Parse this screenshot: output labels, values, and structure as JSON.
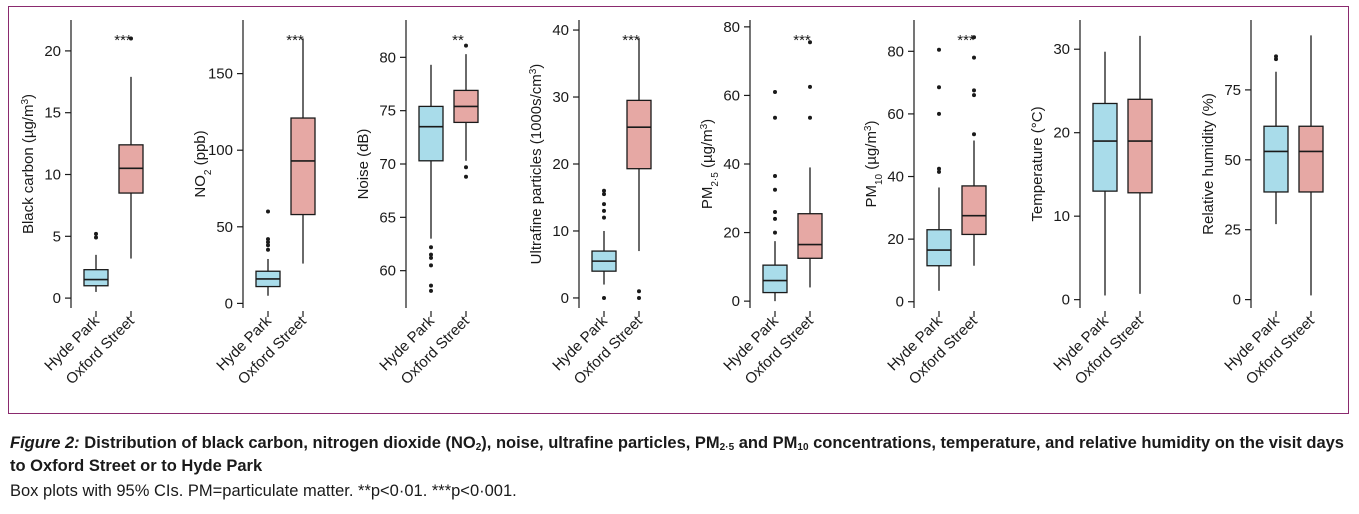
{
  "figure": {
    "caption_label": "Figure 2:",
    "caption_parts": [
      "Distribution of black carbon, nitrogen dioxide (NO",
      "2",
      "), noise, ultrafine particles, PM",
      "2·5",
      " and PM",
      "10",
      " concentrations, temperature, and relative humidity on the visit days to Oxford Street or to Hyde Park"
    ],
    "note": "Box plots with 95% CIs. PM=particulate matter. **p<0·01. ***p<0·001.",
    "colors": {
      "hyde_park": "#a9dcea",
      "oxford_street": "#e6a8a4",
      "frame": "#8a2a6e",
      "ink": "#1a1a1a"
    }
  },
  "chart_data": [
    {
      "type": "box",
      "ylabel": "Black carbon (µg/m³)",
      "ylabel_parts": [
        "Black carbon (µg/m",
        "3",
        ")"
      ],
      "ylim": [
        -0.8,
        22.5
      ],
      "ticks": [
        0,
        5,
        10,
        15,
        20
      ],
      "tick_labels": [
        "0",
        "5",
        "10",
        "15",
        "20"
      ],
      "significance": "***",
      "categories": [
        "Hyde Park",
        "Oxford Street"
      ],
      "series": [
        {
          "name": "Hyde Park",
          "whisker_low": 0.5,
          "q1": 1.0,
          "median": 1.5,
          "q3": 2.3,
          "whisker_high": 3.5,
          "outliers": [
            4.9,
            5.2
          ]
        },
        {
          "name": "Oxford Street",
          "whisker_low": 3.2,
          "q1": 8.5,
          "median": 10.5,
          "q3": 12.4,
          "whisker_high": 17.9,
          "outliers": [
            21.0
          ]
        }
      ]
    },
    {
      "type": "box",
      "ylabel": "NO₂ (ppb)",
      "ylabel_parts": [
        "NO",
        "2",
        " (ppb)"
      ],
      "ylim": [
        -3,
        185
      ],
      "ticks": [
        0,
        50,
        100,
        150
      ],
      "tick_labels": [
        "0",
        "50",
        "100",
        "150"
      ],
      "significance": "***",
      "categories": [
        "Hyde Park",
        "Oxford Street"
      ],
      "series": [
        {
          "name": "Hyde Park",
          "whisker_low": 5,
          "q1": 11,
          "median": 16,
          "q3": 21,
          "whisker_high": 29,
          "outliers": [
            35,
            38,
            40,
            42,
            60
          ]
        },
        {
          "name": "Oxford Street",
          "whisker_low": 26,
          "q1": 58,
          "median": 93,
          "q3": 121,
          "whisker_high": 173,
          "outliers": []
        }
      ]
    },
    {
      "type": "box",
      "ylabel": "Noise (dB)",
      "ylabel_parts": [
        "Noise (dB)",
        "",
        ""
      ],
      "ylim": [
        56.5,
        83.5
      ],
      "ticks": [
        60,
        65,
        70,
        75,
        80
      ],
      "tick_labels": [
        "60",
        "65",
        "70",
        "75",
        "80"
      ],
      "significance": "**",
      "categories": [
        "Hyde Park",
        "Oxford Street"
      ],
      "series": [
        {
          "name": "Hyde Park",
          "whisker_low": 63,
          "q1": 70.3,
          "median": 73.5,
          "q3": 75.4,
          "whisker_high": 79.3,
          "outliers": [
            62.2,
            61.5,
            61.2,
            60.5,
            58.6,
            58.1
          ]
        },
        {
          "name": "Oxford Street",
          "whisker_low": 70.3,
          "q1": 73.9,
          "median": 75.4,
          "q3": 76.9,
          "whisker_high": 80.3,
          "outliers": [
            69.7,
            68.8,
            81.1
          ]
        }
      ]
    },
    {
      "type": "box",
      "ylabel": "Ultrafine particles (1000s/cm³)",
      "ylabel_parts": [
        "Ultrafine particles (1000s/cm",
        "3",
        ")"
      ],
      "ylim": [
        -1.5,
        41.5
      ],
      "ticks": [
        0,
        10,
        20,
        30,
        40
      ],
      "tick_labels": [
        "0",
        "10",
        "20",
        "30",
        "40"
      ],
      "significance": "***",
      "categories": [
        "Hyde Park",
        "Oxford Street"
      ],
      "series": [
        {
          "name": "Hyde Park",
          "whisker_low": 2,
          "q1": 4,
          "median": 5.5,
          "q3": 7,
          "whisker_high": 10,
          "outliers": [
            0,
            12,
            13,
            14,
            15.5,
            16
          ]
        },
        {
          "name": "Oxford Street",
          "whisker_low": 7,
          "q1": 19.3,
          "median": 25.5,
          "q3": 29.5,
          "whisker_high": 38.8,
          "outliers": [
            1,
            0
          ]
        }
      ]
    },
    {
      "type": "box",
      "ylabel": "PM₂·₅ (µg/m³)",
      "ylabel_parts": [
        "PM",
        "2·5",
        " (µg/m",
        "3",
        ")"
      ],
      "ylim": [
        -2,
        82
      ],
      "ticks": [
        0,
        20,
        40,
        60,
        80
      ],
      "tick_labels": [
        "0",
        "20",
        "40",
        "60",
        "80"
      ],
      "significance": "***",
      "categories": [
        "Hyde Park",
        "Oxford Street"
      ],
      "series": [
        {
          "name": "Hyde Park",
          "whisker_low": 0,
          "q1": 2.5,
          "median": 6,
          "q3": 10.5,
          "whisker_high": 17.5,
          "outliers": [
            20,
            24,
            26,
            32.5,
            36.5,
            53.5,
            61
          ]
        },
        {
          "name": "Oxford Street",
          "whisker_low": 4,
          "q1": 12.5,
          "median": 16.5,
          "q3": 25.5,
          "whisker_high": 39,
          "outliers": [
            53.5,
            62.5,
            75.5
          ]
        }
      ]
    },
    {
      "type": "box",
      "ylabel": "PM₁₀ (µg/m³)",
      "ylabel_parts": [
        "PM",
        "10",
        " (µg/m",
        "3",
        ")"
      ],
      "ylim": [
        -2,
        90
      ],
      "ticks": [
        0,
        20,
        40,
        60,
        80
      ],
      "tick_labels": [
        "0",
        "20",
        "40",
        "60",
        "80"
      ],
      "significance": "***",
      "categories": [
        "Hyde Park",
        "Oxford Street"
      ],
      "series": [
        {
          "name": "Hyde Park",
          "whisker_low": 3.5,
          "q1": 11.5,
          "median": 16.5,
          "q3": 23,
          "whisker_high": 36.5,
          "outliers": [
            41.5,
            42.5,
            60,
            68.5,
            80.5
          ]
        },
        {
          "name": "Oxford Street",
          "whisker_low": 11.5,
          "q1": 21.5,
          "median": 27.5,
          "q3": 37,
          "whisker_high": 51.5,
          "outliers": [
            53.5,
            66,
            67.5,
            78,
            84.5
          ]
        }
      ]
    },
    {
      "type": "box",
      "ylabel": "Temperature (°C)",
      "ylabel_parts": [
        "Temperature (°C)",
        "",
        ""
      ],
      "ylim": [
        -1,
        33.5
      ],
      "ticks": [
        0,
        10,
        20,
        30
      ],
      "tick_labels": [
        "0",
        "10",
        "20",
        "30"
      ],
      "significance": "",
      "categories": [
        "Hyde Park",
        "Oxford Street"
      ],
      "series": [
        {
          "name": "Hyde Park",
          "whisker_low": 0.5,
          "q1": 13,
          "median": 19,
          "q3": 23.5,
          "whisker_high": 29.7,
          "outliers": []
        },
        {
          "name": "Oxford Street",
          "whisker_low": 0.7,
          "q1": 12.8,
          "median": 19,
          "q3": 24,
          "whisker_high": 31.6,
          "outliers": []
        }
      ]
    },
    {
      "type": "box",
      "ylabel": "Relative humidity (%)",
      "ylabel_parts": [
        "Relative humidity (%)",
        "",
        ""
      ],
      "ylim": [
        -3,
        100
      ],
      "ticks": [
        0,
        25,
        50,
        75
      ],
      "tick_labels": [
        "0",
        "25",
        "50",
        "75"
      ],
      "significance": "",
      "categories": [
        "Hyde Park",
        "Oxford Street"
      ],
      "series": [
        {
          "name": "Hyde Park",
          "whisker_low": 27,
          "q1": 38.5,
          "median": 53,
          "q3": 62,
          "whisker_high": 81.5,
          "outliers": [
            86,
            87
          ]
        },
        {
          "name": "Oxford Street",
          "whisker_low": 1.5,
          "q1": 38.5,
          "median": 53,
          "q3": 62,
          "whisker_high": 94.5,
          "outliers": []
        }
      ]
    }
  ]
}
